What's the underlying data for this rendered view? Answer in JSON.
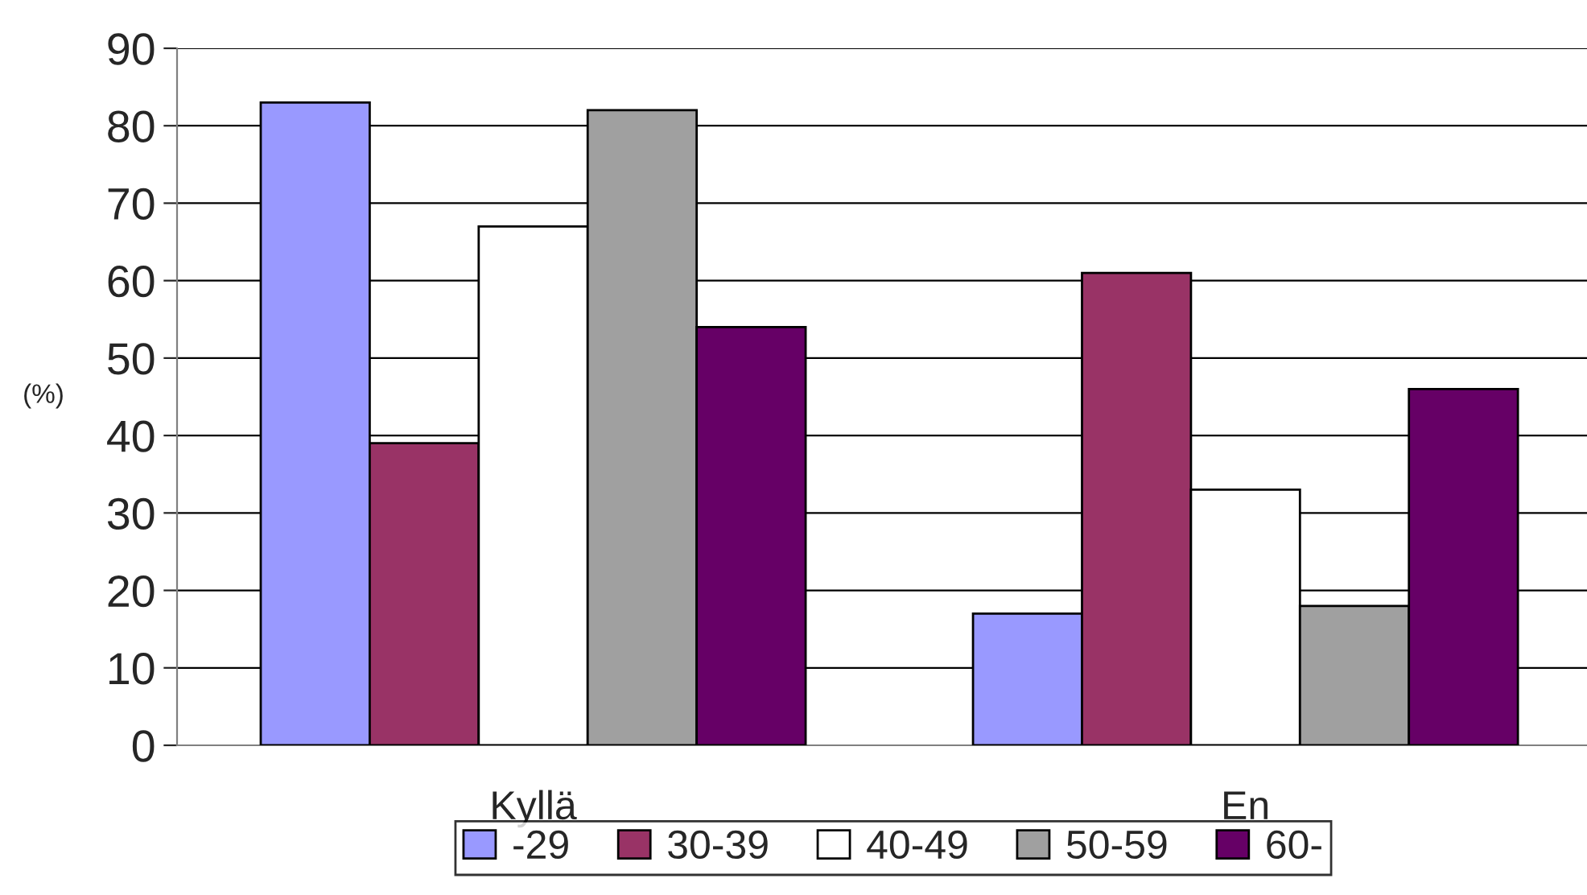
{
  "chart_data": {
    "type": "bar",
    "ylabel": "(%)",
    "categories": [
      "Kyllä",
      "En"
    ],
    "series": [
      {
        "name": "-29",
        "color": "#9999ff",
        "values": [
          83,
          17
        ]
      },
      {
        "name": "30-39",
        "color": "#993366",
        "values": [
          39,
          61
        ]
      },
      {
        "name": "40-49",
        "color": "#ffffff",
        "values": [
          67,
          33
        ]
      },
      {
        "name": "50-59",
        "color": "#a0a0a0",
        "values": [
          82,
          18
        ]
      },
      {
        "name": "60-",
        "color": "#660066",
        "values": [
          54,
          46
        ]
      }
    ],
    "ylim": [
      0,
      90
    ],
    "yticks": [
      0,
      10,
      20,
      30,
      40,
      50,
      60,
      70,
      80,
      90
    ],
    "grid": "y",
    "legend": "bottom"
  }
}
